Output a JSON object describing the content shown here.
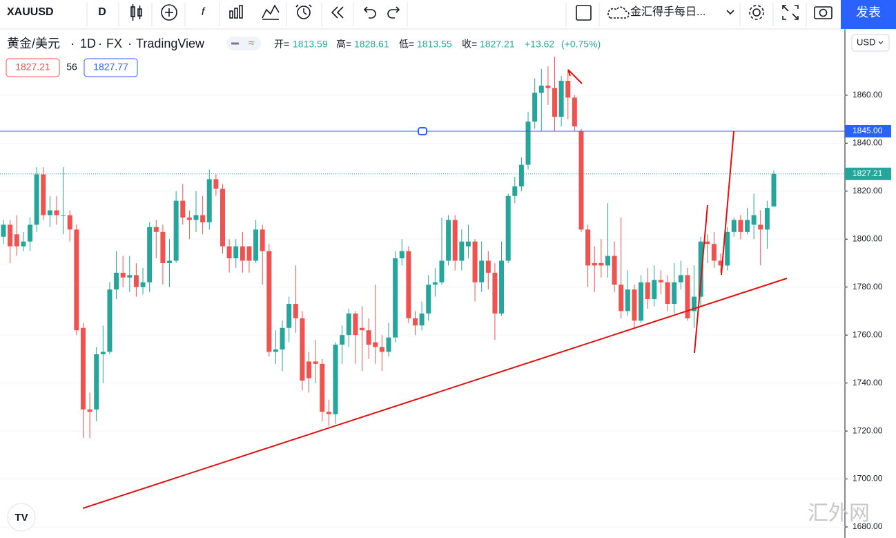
{
  "toolbar": {
    "symbol": "XAUUSD",
    "interval": "D",
    "layout_name": "金汇得手每日...",
    "publish": "发表"
  },
  "chart_data": {
    "type": "candlestick",
    "title": "黄金/美元",
    "interval": "1D",
    "exchange": "FX",
    "source": "TradingView",
    "open_label": "开=",
    "high_label": "高=",
    "low_label": "低=",
    "close_label": "收=",
    "change": 13.62,
    "change_label": "+13.62",
    "change_percent": 0.75,
    "change_percent_label": "(+0.75%)",
    "bid": 1827.21,
    "spread": 56,
    "ask": 1827.77,
    "currency": "USD",
    "up_color": "#26a69a",
    "down_color": "#ef5350",
    "open": [
      1801,
      1806,
      1802,
      1797,
      1799,
      1806,
      1827,
      1810,
      1812,
      1810,
      1810,
      1804,
      1763,
      1729,
      1729,
      1752,
      1753,
      1779,
      1786,
      1784,
      1785,
      1780,
      1782,
      1805,
      1803,
      1790,
      1791,
      1816,
      1809,
      1808,
      1810,
      1807,
      1825,
      1821,
      1797,
      1792,
      1797,
      1797,
      1791,
      1804,
      1795,
      1753,
      1754,
      1763,
      1773,
      1767,
      1749,
      1749,
      1748,
      1728,
      1727,
      1756,
      1760,
      1769,
      1763,
      1762,
      1757,
      1755,
      1753,
      1759,
      1792,
      1795,
      1767,
      1764,
      1769,
      1781,
      1782,
      1791,
      1808,
      1791,
      1797,
      1799,
      1782,
      1791,
      1786,
      1769,
      1791,
      1818,
      1822,
      1831,
      1849,
      1861,
      1864,
      1863,
      1851,
      1866,
      1859,
      1845,
      1804,
      1790,
      1790,
      1789,
      1793,
      1781,
      1770,
      1779,
      1766,
      1782,
      1775,
      1783,
      1782,
      1773,
      1782,
      1785,
      1770,
      1776,
      1799,
      1798,
      1791,
      1789,
      1803,
      1808,
      1803,
      1806,
      1806,
      1804,
      1813.59
    ],
    "high": [
      1808,
      1808,
      1810,
      1803,
      1809,
      1830,
      1830,
      1818,
      1818,
      1830,
      1812,
      1806,
      1765,
      1736,
      1755,
      1764,
      1782,
      1795,
      1793,
      1793,
      1790,
      1788,
      1807,
      1808,
      1806,
      1800,
      1820,
      1823,
      1812,
      1820,
      1818,
      1829,
      1827,
      1823,
      1800,
      1800,
      1803,
      1797,
      1808,
      1806,
      1798,
      1762,
      1766,
      1776,
      1789,
      1770,
      1753,
      1758,
      1750,
      1733,
      1757,
      1764,
      1771,
      1770,
      1772,
      1767,
      1781,
      1760,
      1765,
      1795,
      1800,
      1797,
      1770,
      1774,
      1785,
      1788,
      1809,
      1810,
      1810,
      1804,
      1806,
      1800,
      1799,
      1795,
      1790,
      1799,
      1819,
      1826,
      1834,
      1853,
      1867,
      1871,
      1872,
      1876,
      1868,
      1870,
      1860,
      1846,
      1806,
      1797,
      1800,
      1815,
      1799,
      1809,
      1787,
      1781,
      1785,
      1788,
      1789,
      1787,
      1785,
      1790,
      1791,
      1788,
      1789,
      1801,
      1802,
      1803,
      1794,
      1805,
      1809,
      1810,
      1813,
      1819,
      1812,
      1816,
      1828.61
    ],
    "low": [
      1798,
      1790,
      1793,
      1795,
      1795,
      1803,
      1808,
      1805,
      1806,
      1802,
      1799,
      1760,
      1717,
      1717,
      1724,
      1740,
      1752,
      1775,
      1780,
      1778,
      1776,
      1777,
      1778,
      1792,
      1781,
      1780,
      1790,
      1806,
      1800,
      1803,
      1802,
      1804,
      1818,
      1794,
      1786,
      1788,
      1786,
      1786,
      1790,
      1781,
      1751,
      1748,
      1745,
      1757,
      1761,
      1737,
      1736,
      1740,
      1724,
      1722,
      1723,
      1748,
      1755,
      1748,
      1745,
      1750,
      1748,
      1745,
      1751,
      1757,
      1789,
      1765,
      1760,
      1762,
      1766,
      1776,
      1781,
      1789,
      1787,
      1787,
      1792,
      1774,
      1778,
      1779,
      1758,
      1768,
      1790,
      1815,
      1820,
      1829,
      1846,
      1845,
      1856,
      1845,
      1847,
      1850,
      1845,
      1803,
      1780,
      1778,
      1784,
      1784,
      1778,
      1767,
      1768,
      1763,
      1765,
      1771,
      1772,
      1777,
      1770,
      1769,
      1779,
      1766,
      1763,
      1772,
      1790,
      1788,
      1786,
      1787,
      1801,
      1800,
      1802,
      1800,
      1789,
      1796,
      1813.55
    ],
    "close": [
      1806,
      1797,
      1797,
      1799,
      1806,
      1827,
      1810,
      1812,
      1810,
      1810,
      1804,
      1762,
      1729,
      1728,
      1752,
      1753,
      1779,
      1786,
      1784,
      1785,
      1780,
      1782,
      1805,
      1803,
      1790,
      1791,
      1816,
      1809,
      1808,
      1810,
      1807,
      1825,
      1821,
      1797,
      1792,
      1797,
      1791,
      1791,
      1804,
      1795,
      1753,
      1754,
      1763,
      1773,
      1767,
      1741,
      1742,
      1748,
      1728,
      1727,
      1756,
      1760,
      1769,
      1760,
      1762,
      1756,
      1755,
      1753,
      1759,
      1792,
      1795,
      1767,
      1764,
      1769,
      1781,
      1782,
      1791,
      1808,
      1791,
      1799,
      1799,
      1782,
      1791,
      1786,
      1769,
      1791,
      1818,
      1822,
      1831,
      1849,
      1861,
      1864,
      1863,
      1851,
      1866,
      1859,
      1847,
      1804,
      1789,
      1789,
      1789,
      1793,
      1781,
      1770,
      1779,
      1766,
      1782,
      1775,
      1783,
      1782,
      1773,
      1782,
      1785,
      1767,
      1776,
      1799,
      1798,
      1791,
      1789,
      1803,
      1808,
      1803,
      1808,
      1810,
      1804,
      1813,
      1827.21
    ],
    "ylim": [
      1675.4,
      1887.6
    ],
    "yticks": [
      {
        "value": 1680,
        "label": "1680.00"
      },
      {
        "value": 1700,
        "label": "1700.00"
      },
      {
        "value": 1720,
        "label": "1720.00"
      },
      {
        "value": 1740,
        "label": "1740.00"
      },
      {
        "value": 1760,
        "label": "1760.00"
      },
      {
        "value": 1780,
        "label": "1780.00"
      },
      {
        "value": 1800,
        "label": "1800.00"
      },
      {
        "value": 1820,
        "label": "1820.00"
      },
      {
        "value": 1840,
        "label": "1840.00"
      },
      {
        "value": 1860,
        "label": "1860.00"
      }
    ],
    "grid": true,
    "horizontal_line": {
      "value": 1845,
      "label": "1845.00",
      "color": "#2962ff"
    }
  },
  "watermark": "汇外网"
}
